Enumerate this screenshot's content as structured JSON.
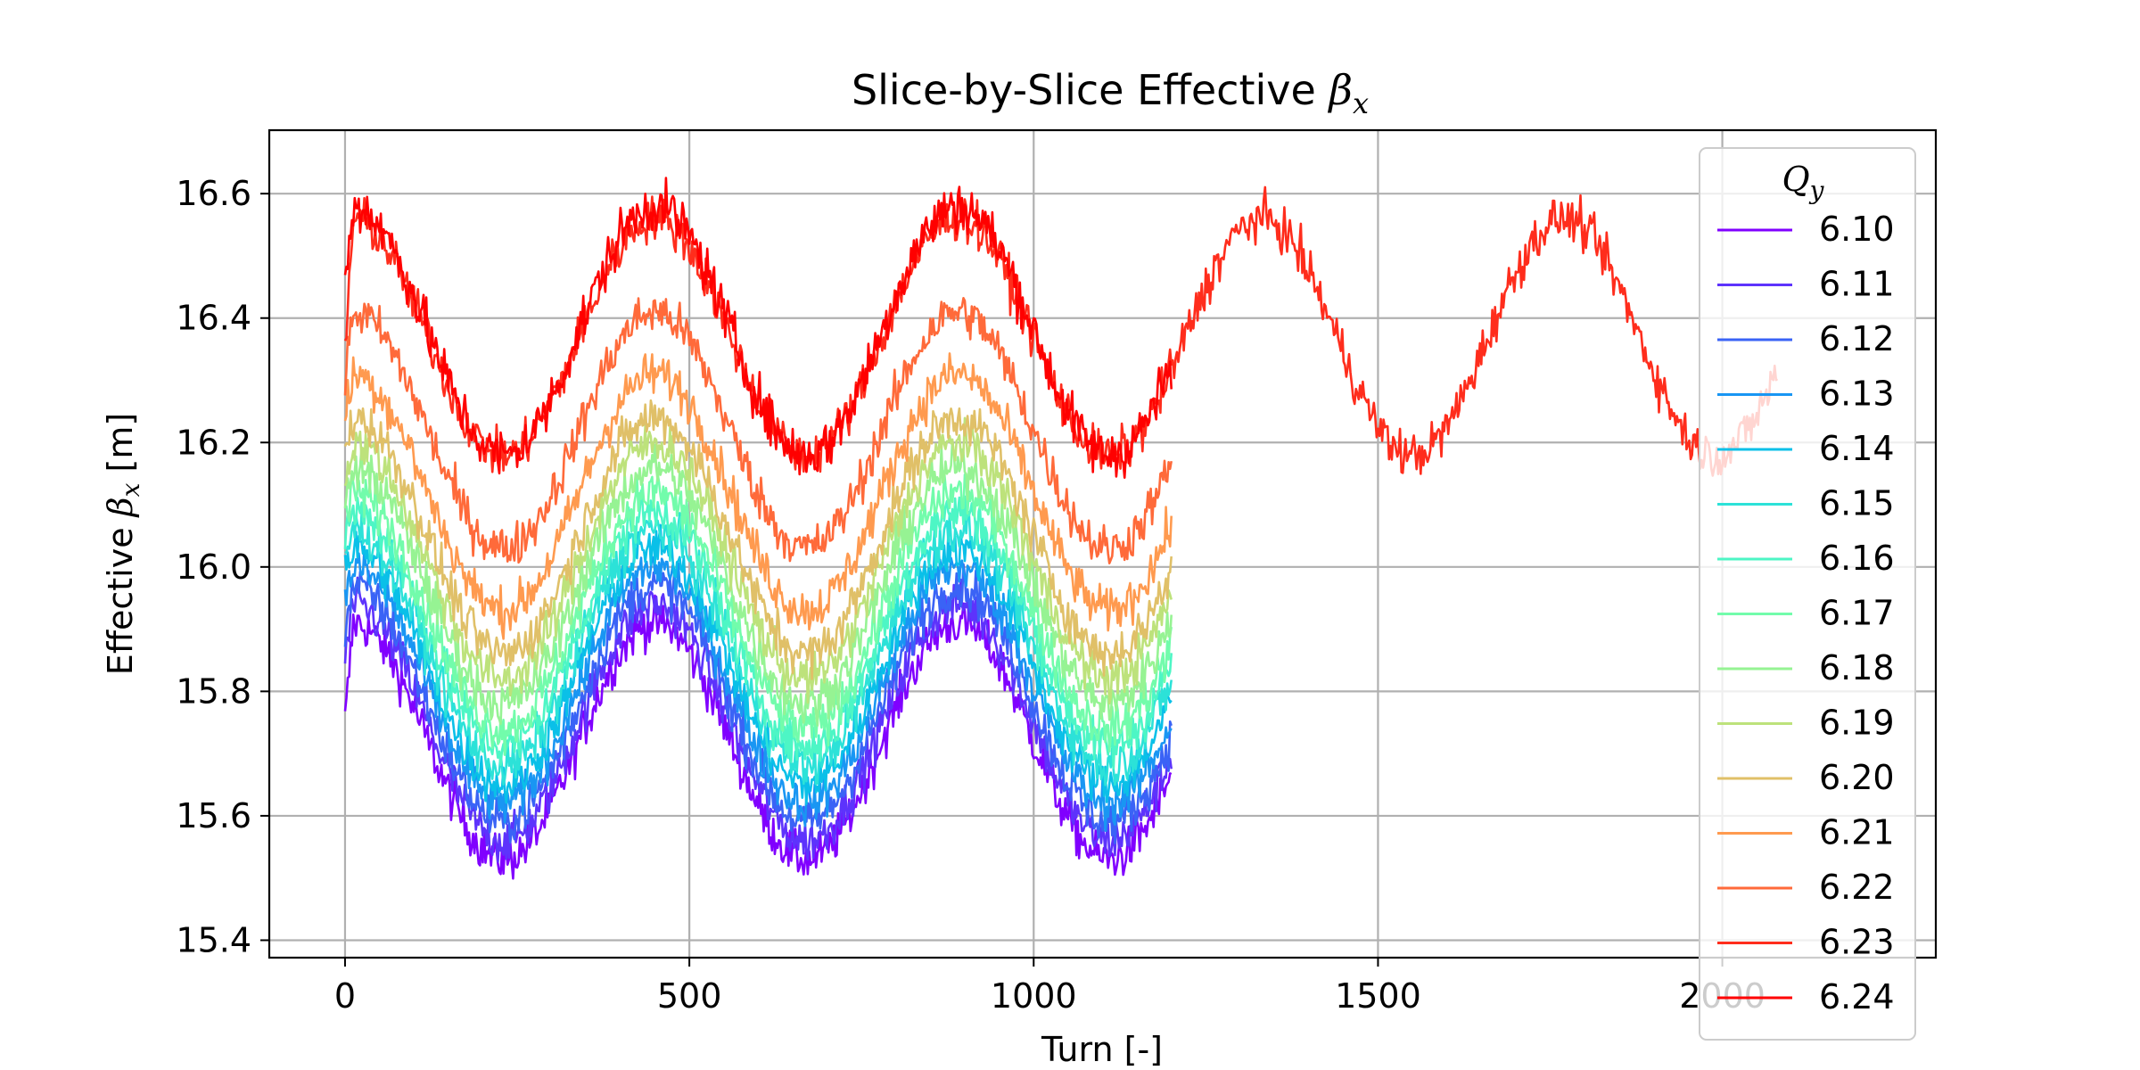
{
  "chart_data": {
    "type": "line",
    "title": "Slice-by-Slice Effective βx",
    "title_text": "Slice-by-Slice Effective ",
    "title_symbol": "β",
    "title_subscript": "x",
    "xlabel": "Turn [-]",
    "ylabel_text": "Effective ",
    "ylabel_symbol": "β",
    "ylabel_subscript": "x",
    "ylabel_unit": " [m]",
    "xlim": [
      -110,
      2310
    ],
    "ylim": [
      15.372,
      16.702
    ],
    "x_ticks": [
      0,
      500,
      1000,
      1500,
      2000
    ],
    "y_ticks": [
      15.4,
      15.6,
      15.8,
      16.0,
      16.2,
      16.4,
      16.6
    ],
    "y_tick_labels": [
      "15.4",
      "15.6",
      "15.8",
      "16.0",
      "16.2",
      "16.4",
      "16.6"
    ],
    "grid": true,
    "legend": {
      "title_symbol": "Q",
      "title_subscript": "y",
      "placement": "right, overlapping plot edge"
    },
    "oscillation_period_turns": 440,
    "series": [
      {
        "name": "6.10",
        "color": "#8000ff",
        "turns": [
          0,
          1200
        ],
        "mean": 15.72,
        "amplitude": 0.19,
        "noise": 0.028,
        "start_value": 15.75
      },
      {
        "name": "6.11",
        "color": "#5d33fc",
        "turns": [
          0,
          1200
        ],
        "mean": 15.75,
        "amplitude": 0.19,
        "noise": 0.028,
        "start_value": 15.85
      },
      {
        "name": "6.12",
        "color": "#3a63f6",
        "turns": [
          0,
          1200
        ],
        "mean": 15.78,
        "amplitude": 0.19,
        "noise": 0.028,
        "start_value": 15.9
      },
      {
        "name": "6.13",
        "color": "#1996f3",
        "turns": [
          0,
          1200
        ],
        "mean": 15.81,
        "amplitude": 0.19,
        "noise": 0.028,
        "start_value": 15.95
      },
      {
        "name": "6.14",
        "color": "#0ac0e8",
        "turns": [
          0,
          1200
        ],
        "mean": 15.84,
        "amplitude": 0.19,
        "noise": 0.028,
        "start_value": 16.0
      },
      {
        "name": "6.15",
        "color": "#2ce2d8",
        "turns": [
          0,
          1200
        ],
        "mean": 15.87,
        "amplitude": 0.19,
        "noise": 0.028,
        "start_value": 16.02
      },
      {
        "name": "6.16",
        "color": "#4df6c5",
        "turns": [
          0,
          1200
        ],
        "mean": 15.9,
        "amplitude": 0.19,
        "noise": 0.028,
        "start_value": 16.05
      },
      {
        "name": "6.17",
        "color": "#72fcab",
        "turns": [
          0,
          1200
        ],
        "mean": 15.93,
        "amplitude": 0.19,
        "noise": 0.028,
        "start_value": 16.08
      },
      {
        "name": "6.18",
        "color": "#96f393",
        "turns": [
          0,
          1200
        ],
        "mean": 15.97,
        "amplitude": 0.19,
        "noise": 0.028,
        "start_value": 16.1
      },
      {
        "name": "6.19",
        "color": "#bde27b",
        "turns": [
          0,
          1200
        ],
        "mean": 16.01,
        "amplitude": 0.19,
        "noise": 0.028,
        "start_value": 16.14
      },
      {
        "name": "6.20",
        "color": "#e0c068",
        "turns": [
          0,
          1200
        ],
        "mean": 16.05,
        "amplitude": 0.19,
        "noise": 0.028,
        "start_value": 16.18
      },
      {
        "name": "6.21",
        "color": "#ff9a4f",
        "turns": [
          0,
          1200
        ],
        "mean": 16.12,
        "amplitude": 0.19,
        "noise": 0.028,
        "start_value": 16.24
      },
      {
        "name": "6.22",
        "color": "#ff6a3a",
        "turns": [
          0,
          1200
        ],
        "mean": 16.22,
        "amplitude": 0.19,
        "noise": 0.028,
        "start_value": 16.3
      },
      {
        "name": "6.23",
        "color": "#ff2d1c",
        "turns": [
          0,
          2080
        ],
        "mean": 16.37,
        "amplitude": 0.19,
        "noise": 0.028,
        "start_value": 16.35
      },
      {
        "name": "6.24",
        "color": "#ff0000",
        "turns": [
          0,
          1200
        ],
        "mean": 16.38,
        "amplitude": 0.2,
        "noise": 0.032,
        "start_value": 16.45
      }
    ]
  }
}
